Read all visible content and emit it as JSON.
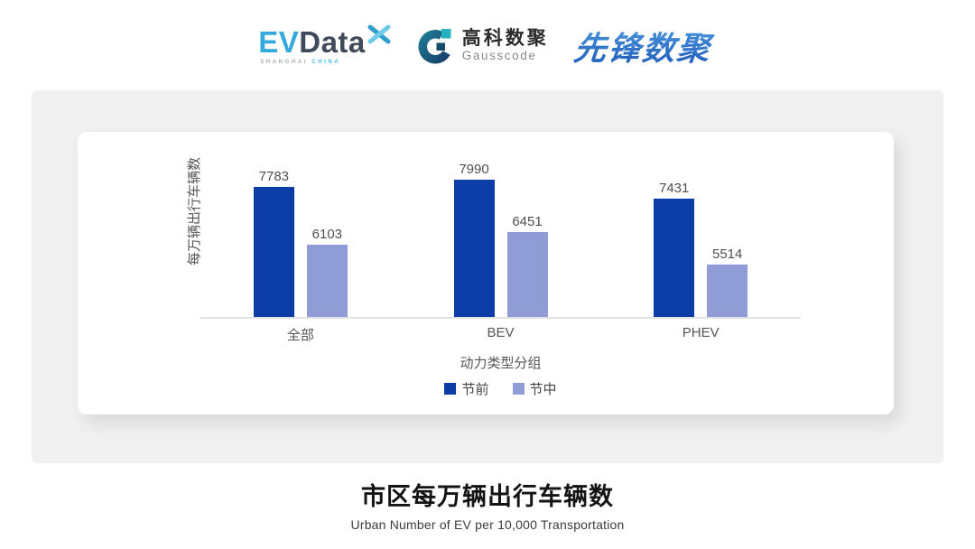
{
  "header": {
    "evdata": {
      "word_ev": "EV",
      "word_data": "Data",
      "sub_left": "SHANGHAI",
      "sub_right": "CHINA"
    },
    "gausscode": {
      "cn": "高科数聚",
      "en": "Gausscode"
    },
    "xianfeng": {
      "text": "先锋数聚"
    }
  },
  "chart_data": {
    "type": "bar",
    "categories": [
      "全部",
      "BEV",
      "PHEV"
    ],
    "series": [
      {
        "name": "节前",
        "color": "#0C3DA6",
        "values": [
          7783,
          7990,
          7431
        ]
      },
      {
        "name": "节中",
        "color": "#8F9CD6",
        "values": [
          6103,
          6451,
          5514
        ]
      }
    ],
    "ylabel": "每万辆出行车辆数",
    "xlabel": "动力类型分组",
    "ylim": [
      4000,
      8400
    ],
    "grid": false,
    "value_labels": true,
    "legend_position": "bottom"
  },
  "footer": {
    "title": "市区每万辆出行车辆数",
    "subtitle": "Urban Number of EV per 10,000 Transportation"
  },
  "colors": {
    "series_pre_festival": "#0C3DA6",
    "series_mid_festival": "#8F9CD6",
    "panel_bg": "#F0F0F1",
    "card_bg": "#FFFFFF",
    "axis_line": "#E2E2E2",
    "chart_text": "#555555",
    "evdata_blue": "#36A9DC",
    "evdata_dark": "#3F4B5B",
    "gausscode_navy": "#17496B",
    "gausscode_teal": "#26B2BE",
    "xianfeng_blue": "#2968C8"
  }
}
